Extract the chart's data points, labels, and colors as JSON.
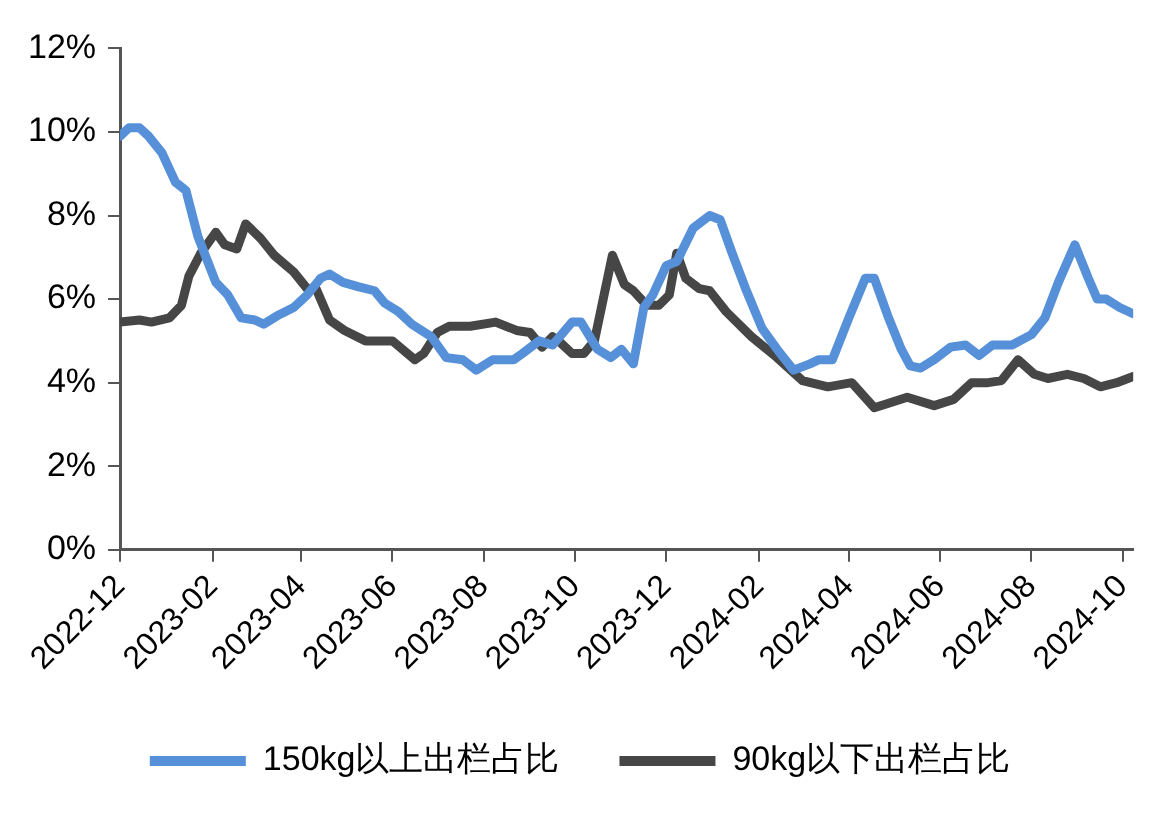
{
  "chart_data": {
    "type": "line",
    "legend": "bottom",
    "marker": "none",
    "line_style": "solid",
    "xlim": [
      "2022-12-01",
      "2024-10-08"
    ],
    "xticks": [
      "2022-12",
      "2023-02",
      "2023-04",
      "2023-06",
      "2023-08",
      "2023-10",
      "2023-12",
      "2024-02",
      "2024-04",
      "2024-06",
      "2024-08",
      "2024-10"
    ],
    "ylim": [
      0,
      12
    ],
    "yticks": [
      {
        "value": 0,
        "label": "0%"
      },
      {
        "value": 2,
        "label": "2%"
      },
      {
        "value": 4,
        "label": "4%"
      },
      {
        "value": 6,
        "label": "6%"
      },
      {
        "value": 8,
        "label": "8%"
      },
      {
        "value": 10,
        "label": "10%"
      },
      {
        "value": 12,
        "label": "12%"
      }
    ],
    "series": [
      {
        "name": "150kg以上出栏占比",
        "color": "#5590d9",
        "x": [
          "2022-12-01",
          "2022-12-07",
          "2022-12-14",
          "2022-12-20",
          "2022-12-29",
          "2023-01-07",
          "2023-01-14",
          "2023-01-22",
          "2023-02-03",
          "2023-02-11",
          "2023-02-20",
          "2023-03-01",
          "2023-03-07",
          "2023-03-16",
          "2023-03-27",
          "2023-04-05",
          "2023-04-14",
          "2023-04-20",
          "2023-04-29",
          "2023-05-09",
          "2023-05-20",
          "2023-05-27",
          "2023-06-05",
          "2023-06-14",
          "2023-06-27",
          "2023-07-07",
          "2023-07-18",
          "2023-07-27",
          "2023-08-07",
          "2023-08-21",
          "2023-08-27",
          "2023-09-07",
          "2023-09-16",
          "2023-09-29",
          "2023-10-05",
          "2023-10-16",
          "2023-10-25",
          "2023-11-01",
          "2023-11-09",
          "2023-11-16",
          "2023-11-22",
          "2023-12-01",
          "2023-12-08",
          "2023-12-19",
          "2023-12-30",
          "2024-01-06",
          "2024-01-14",
          "2024-01-23",
          "2024-02-03",
          "2024-02-13",
          "2024-02-24",
          "2024-03-06",
          "2024-03-12",
          "2024-03-21",
          "2024-04-01",
          "2024-04-12",
          "2024-04-18",
          "2024-04-27",
          "2024-05-06",
          "2024-05-12",
          "2024-05-19",
          "2024-05-28",
          "2024-06-08",
          "2024-06-18",
          "2024-06-27",
          "2024-07-06",
          "2024-07-19",
          "2024-08-01",
          "2024-08-10",
          "2024-08-19",
          "2024-08-30",
          "2024-09-08",
          "2024-09-14",
          "2024-09-20",
          "2024-09-29",
          "2024-10-08"
        ],
        "values": [
          9.9,
          10.1,
          10.1,
          9.9,
          9.5,
          8.8,
          8.6,
          7.5,
          6.4,
          6.1,
          5.55,
          5.5,
          5.4,
          5.6,
          5.8,
          6.1,
          6.5,
          6.6,
          6.4,
          6.3,
          6.2,
          5.9,
          5.7,
          5.4,
          5.1,
          4.6,
          4.55,
          4.3,
          4.55,
          4.55,
          4.7,
          5.0,
          4.9,
          5.45,
          5.45,
          4.8,
          4.6,
          4.8,
          4.45,
          5.8,
          6.1,
          6.8,
          6.9,
          7.7,
          8.0,
          7.9,
          7.1,
          6.25,
          5.3,
          4.8,
          4.3,
          4.45,
          4.55,
          4.55,
          5.55,
          6.5,
          6.5,
          5.6,
          4.8,
          4.4,
          4.35,
          4.55,
          4.85,
          4.9,
          4.65,
          4.9,
          4.9,
          5.15,
          5.55,
          6.4,
          7.3,
          6.5,
          6.0,
          6.0,
          5.8,
          5.65
        ]
      },
      {
        "name": "90kg以下出栏占比",
        "color": "#464646",
        "x": [
          "2022-12-01",
          "2022-12-14",
          "2022-12-22",
          "2023-01-03",
          "2023-01-11",
          "2023-01-16",
          "2023-01-24",
          "2023-02-03",
          "2023-02-09",
          "2023-02-17",
          "2023-02-23",
          "2023-03-05",
          "2023-03-14",
          "2023-03-27",
          "2023-04-05",
          "2023-04-11",
          "2023-04-20",
          "2023-04-30",
          "2023-05-14",
          "2023-06-01",
          "2023-06-16",
          "2023-06-22",
          "2023-07-01",
          "2023-07-09",
          "2023-07-23",
          "2023-08-09",
          "2023-08-23",
          "2023-09-01",
          "2023-09-09",
          "2023-09-16",
          "2023-09-20",
          "2023-09-29",
          "2023-10-07",
          "2023-10-14",
          "2023-10-26",
          "2023-11-03",
          "2023-11-09",
          "2023-11-18",
          "2023-11-26",
          "2023-12-03",
          "2023-12-08",
          "2023-12-14",
          "2023-12-23",
          "2023-12-30",
          "2024-01-10",
          "2024-01-27",
          "2024-02-13",
          "2024-03-01",
          "2024-03-18",
          "2024-04-03",
          "2024-04-18",
          "2024-04-27",
          "2024-05-10",
          "2024-05-28",
          "2024-06-10",
          "2024-06-22",
          "2024-07-03",
          "2024-07-12",
          "2024-07-23",
          "2024-08-03",
          "2024-08-12",
          "2024-08-25",
          "2024-09-05",
          "2024-09-16",
          "2024-09-27",
          "2024-10-08"
        ],
        "values": [
          5.45,
          5.5,
          5.45,
          5.55,
          5.85,
          6.55,
          7.1,
          7.6,
          7.3,
          7.2,
          7.8,
          7.45,
          7.05,
          6.65,
          6.25,
          6.25,
          5.5,
          5.25,
          5.0,
          5.0,
          4.55,
          4.7,
          5.2,
          5.35,
          5.35,
          5.45,
          5.25,
          5.2,
          4.85,
          5.1,
          5.0,
          4.7,
          4.7,
          5.0,
          7.05,
          6.35,
          6.2,
          5.85,
          5.85,
          6.1,
          7.1,
          6.5,
          6.25,
          6.2,
          5.7,
          5.1,
          4.6,
          4.05,
          3.9,
          4.0,
          3.4,
          3.5,
          3.65,
          3.45,
          3.6,
          4.0,
          4.0,
          4.05,
          4.55,
          4.2,
          4.1,
          4.2,
          4.1,
          3.9,
          4.0,
          4.15
        ]
      }
    ]
  }
}
